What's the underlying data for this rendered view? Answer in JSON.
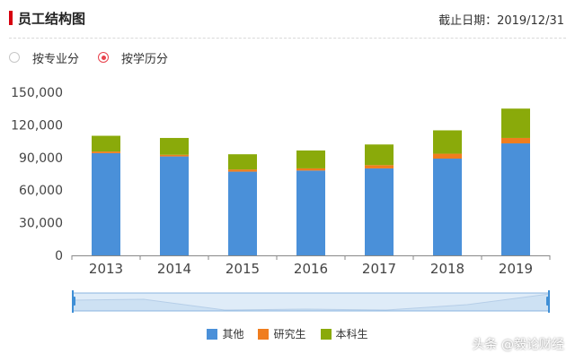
{
  "header": {
    "title": "员工结构图",
    "as_of": "截止日期：2019/12/31"
  },
  "view_options": {
    "by_major": "按专业分",
    "by_education": "按学历分",
    "selected": "by_education"
  },
  "chart_data": {
    "type": "bar",
    "stacked": true,
    "categories": [
      "2013",
      "2014",
      "2015",
      "2016",
      "2017",
      "2018",
      "2019"
    ],
    "series": [
      {
        "name": "其他",
        "color": "#4a90d9",
        "values": [
          94000,
          91000,
          77000,
          78000,
          80000,
          89000,
          103000
        ]
      },
      {
        "name": "研究生",
        "color": "#f07d1e",
        "values": [
          1500,
          1500,
          2000,
          2000,
          3000,
          4500,
          5000
        ]
      },
      {
        "name": "本科生",
        "color": "#8aaa0a",
        "values": [
          14500,
          15500,
          14000,
          16500,
          19000,
          21500,
          27000
        ]
      }
    ],
    "yticks": [
      "0",
      "30,000",
      "60,000",
      "90,000",
      "120,000",
      "150,000"
    ],
    "ylim": [
      0,
      150000
    ],
    "grid": false,
    "legend": "bottom-center"
  },
  "watermark": "头条 @毅论财经"
}
